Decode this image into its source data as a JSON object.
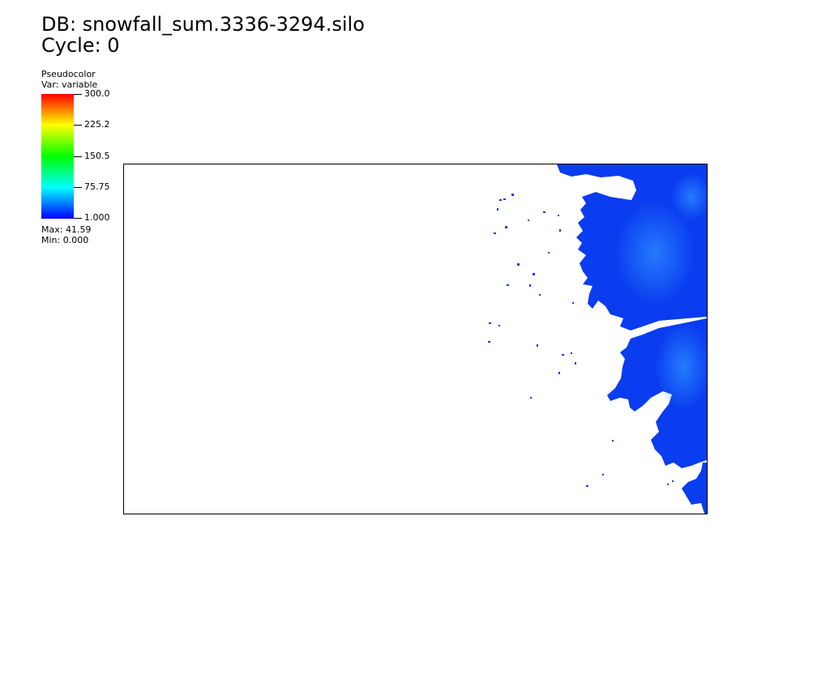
{
  "header": {
    "db_title": "DB: snowfall_sum.3336-3294.silo",
    "cycle": "Cycle: 0"
  },
  "legend": {
    "plot_type": "Pseudocolor",
    "variable": "Var: variable",
    "ticks": [
      "300.0",
      "225.2",
      "150.5",
      "75.75",
      "1.000"
    ],
    "max": "Max:  41.59",
    "min": "Min:  0.000",
    "colors": [
      "#ff0000",
      "#ffff00",
      "#00ff00",
      "#00ffff",
      "#0000ff"
    ]
  },
  "plot": {
    "field_color": "#0a3cf0",
    "field_highlight": "#1e78ff",
    "frame_color": "#000000"
  }
}
